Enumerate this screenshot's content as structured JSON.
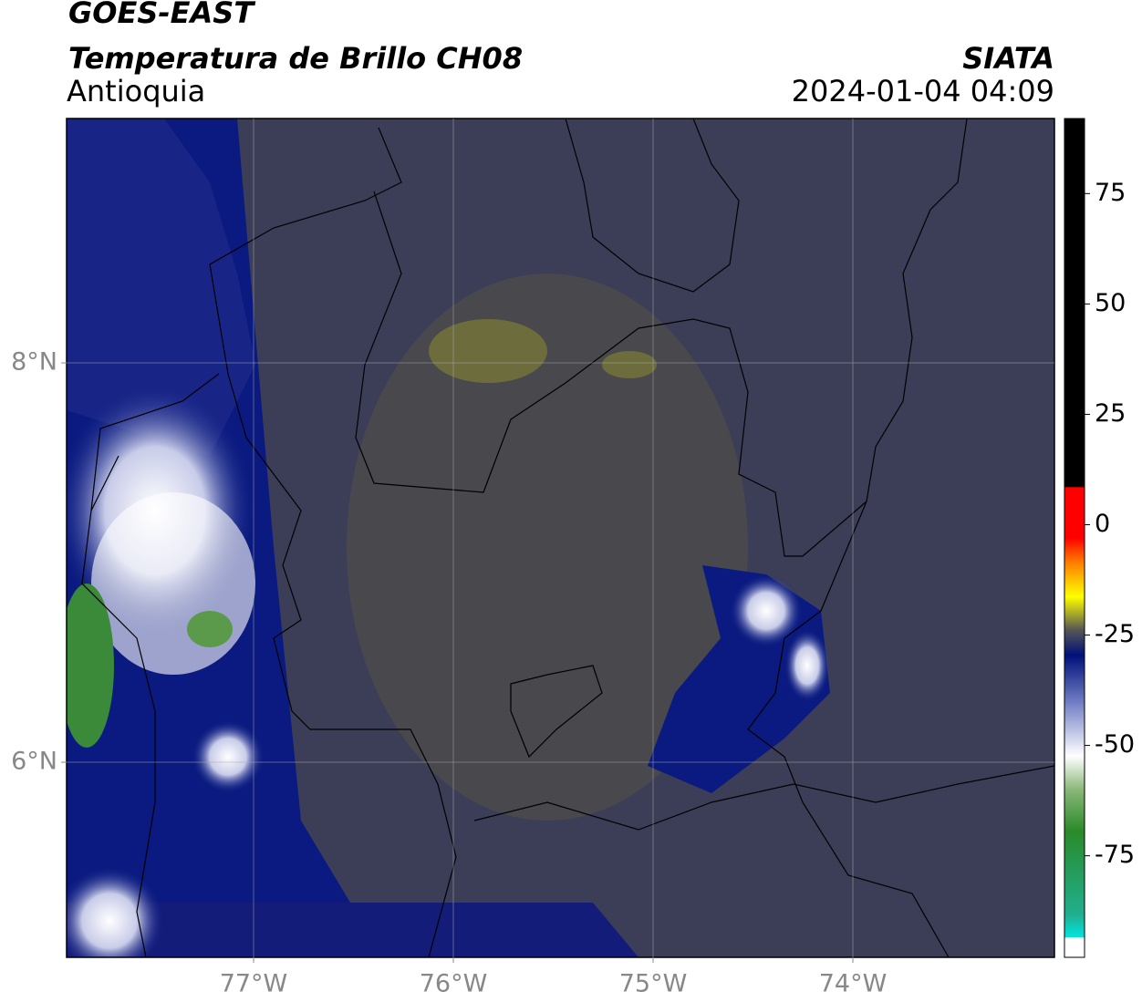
{
  "header": {
    "title": "GOES-EAST",
    "subtitle": "Temperatura de Brillo CH08",
    "region": "Antioquia",
    "source": "SIATA",
    "datetime": "2024-01-04 04:09"
  },
  "map": {
    "xlim": [
      -77.936,
      -72.991
    ],
    "ylim": [
      5.023,
      9.224
    ],
    "xticks": [
      {
        "value": -77,
        "label": "77°W"
      },
      {
        "value": -76,
        "label": "76°W"
      },
      {
        "value": -75,
        "label": "75°W"
      },
      {
        "value": -74,
        "label": "74°W"
      }
    ],
    "yticks": [
      {
        "value": 6,
        "label": "6°N"
      },
      {
        "value": 8,
        "label": "8°N"
      }
    ],
    "grid": true
  },
  "colorbar": {
    "lim": [
      -98,
      92
    ],
    "ticks": [
      -75,
      -50,
      -25,
      0,
      25,
      50,
      75
    ]
  }
}
